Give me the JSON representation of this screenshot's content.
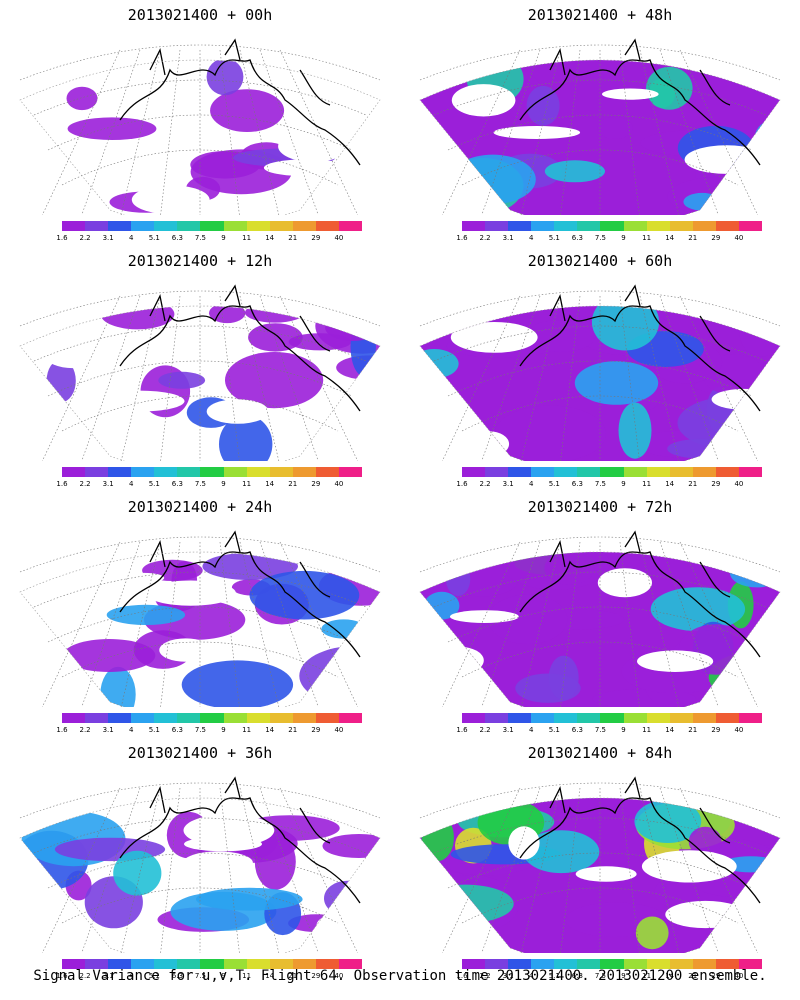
{
  "panels": [
    {
      "title": "2013021400 + 00h",
      "intensity": 0.15
    },
    {
      "title": "2013021400 + 48h",
      "intensity": 0.55
    },
    {
      "title": "2013021400 + 12h",
      "intensity": 0.25
    },
    {
      "title": "2013021400 + 60h",
      "intensity": 0.65
    },
    {
      "title": "2013021400 + 24h",
      "intensity": 0.35
    },
    {
      "title": "2013021400 + 72h",
      "intensity": 0.75
    },
    {
      "title": "2013021400 + 36h",
      "intensity": 0.45
    },
    {
      "title": "2013021400 + 84h",
      "intensity": 0.85
    }
  ],
  "colorbar": {
    "labels": [
      "1.6",
      "2.2",
      "3.1",
      "4",
      "5.1",
      "6.3",
      "7.5",
      "9",
      "11",
      "14",
      "21",
      "29",
      "40"
    ],
    "colors": [
      "#9b1fd9",
      "#7a3fe0",
      "#2f55e8",
      "#2aa2f0",
      "#22c0d6",
      "#22c7a8",
      "#22cc44",
      "#9adf35",
      "#d9de2e",
      "#e8bd2f",
      "#ee9a30",
      "#ef5c33",
      "#ef1f88"
    ]
  },
  "caption": "Signal Variance for u,v,T. Flight 64. Observation time 2013021400. 2013021200 ensemble."
}
